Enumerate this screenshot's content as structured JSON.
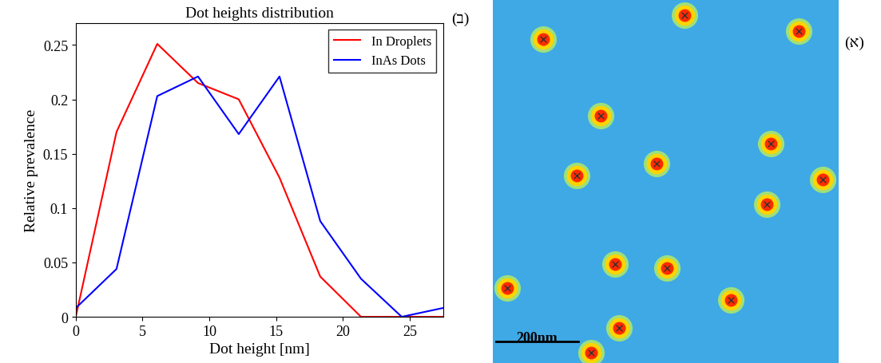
{
  "chart_data": [
    {
      "type": "line",
      "panel_label": "(ב)",
      "title": "Dot heights distribution",
      "x_label": "Dot height [nm]",
      "y_label": "Relative prevalence",
      "x": [
        0,
        3.05,
        6.1,
        9.15,
        12.2,
        15.25,
        18.3,
        21.35,
        24.4,
        27.45
      ],
      "series": [
        {
          "name": "In Droplets",
          "color": "#ff0000",
          "values": [
            0,
            0.17,
            0.251,
            0.215,
            0.2,
            0.128,
            0.037,
            0,
            0,
            0
          ]
        },
        {
          "name": "InAs Dots",
          "color": "#0000ff",
          "values": [
            0.008,
            0.044,
            0.203,
            0.221,
            0.168,
            0.221,
            0.088,
            0.035,
            0,
            0.008
          ]
        }
      ],
      "xlim": [
        0,
        27.5
      ],
      "ylim": [
        0,
        0.27
      ],
      "xticks": [
        0,
        5,
        10,
        15,
        20,
        25
      ],
      "yticks": [
        0,
        0.05,
        0.1,
        0.15,
        0.2,
        0.25
      ],
      "legend": "upper right"
    },
    {
      "type": "image",
      "panel_label": "(א)",
      "xlim": [
        0,
        840
      ],
      "ylim": [
        880,
        0
      ],
      "tick_labels": false,
      "dots": {
        "x": [
          122,
          466,
          675,
          666,
          307,
          578,
          262,
          204,
          398,
          297,
          743,
          239,
          423,
          801,
          35
        ],
        "y": [
          97,
          39,
          349,
          495,
          795,
          728,
          281,
          427,
          398,
          640,
          78,
          854,
          650,
          437,
          698
        ]
      },
      "scale_bar": {
        "length": 200,
        "label": "200nm"
      }
    }
  ]
}
